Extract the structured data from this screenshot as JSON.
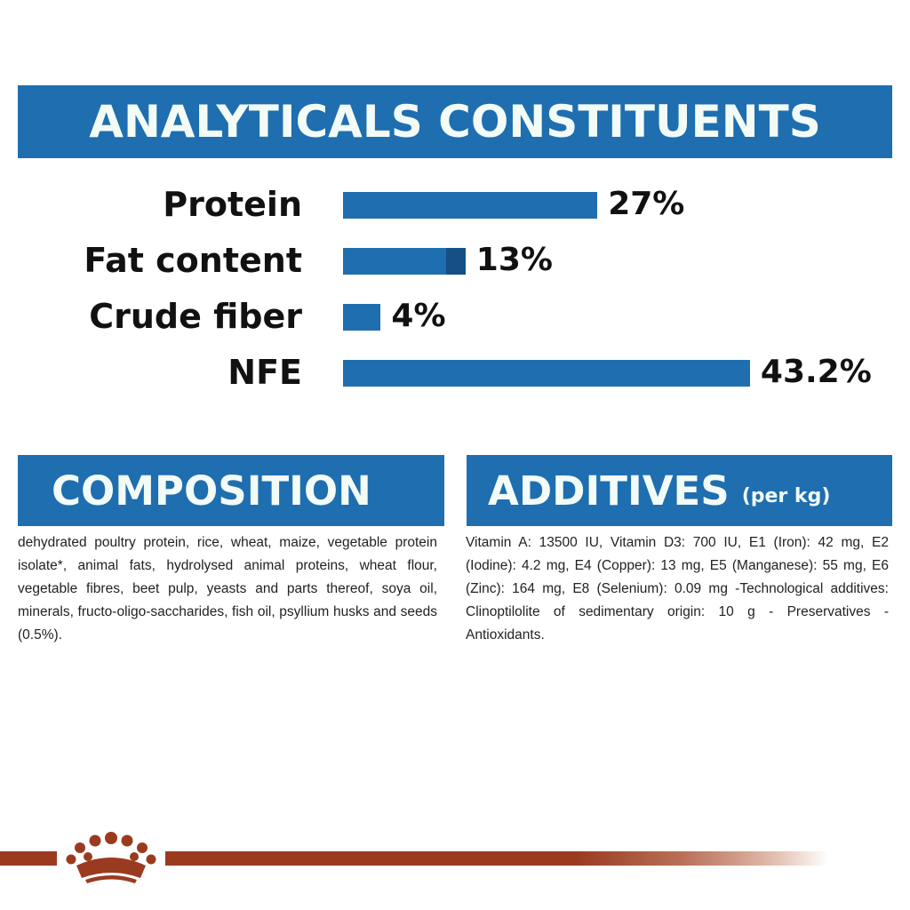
{
  "headers": {
    "analyticals": "ANALYTICALS CONSTITUENTS",
    "composition": "COMPOSITION",
    "additives": "ADDITIVES",
    "additives_unit": "(per kg)"
  },
  "chart_data": {
    "type": "bar",
    "orientation": "horizontal",
    "title": "ANALYTICALS CONSTITUENTS",
    "categories": [
      "Protein",
      "Fat content",
      "Crude fiber",
      "NFE"
    ],
    "values": [
      27,
      13,
      4,
      43.2
    ],
    "value_labels": [
      "27%",
      "13%",
      "4%",
      "43.2%"
    ],
    "unit": "%",
    "grid": false,
    "legend": "none"
  },
  "composition": {
    "text": "dehydrated poultry protein, rice, wheat, maize, vegetable protein isolate*, animal fats, hydrolysed animal proteins, wheat flour, vegetable fibres, beet pulp, yeasts and parts thereof, soya oil, minerals, fructo-oligo-saccharides, fish oil, psyllium husks and seeds (0.5%)."
  },
  "additives": {
    "text": "Vitamin A: 13500 IU, Vitamin D3: 700 IU, E1 (Iron): 42 mg, E2 (Iodine): 4.2 mg, E4 (Copper): 13 mg, E5 (Manganese): 55 mg, E6 (Zinc): 164 mg, E8 (Selenium): 0.09 mg -Technological additives: Clinoptilolite of sedimentary origin: 10 g - Preservatives - Antioxidants."
  },
  "colors": {
    "brand_blue": "#1e6eb0",
    "brand_blue_dark": "#164f86",
    "banner_text": "#f2fbf6",
    "footer_red": "#9a3b20"
  },
  "icons": {
    "logo": "royal-crown-logo-icon"
  }
}
